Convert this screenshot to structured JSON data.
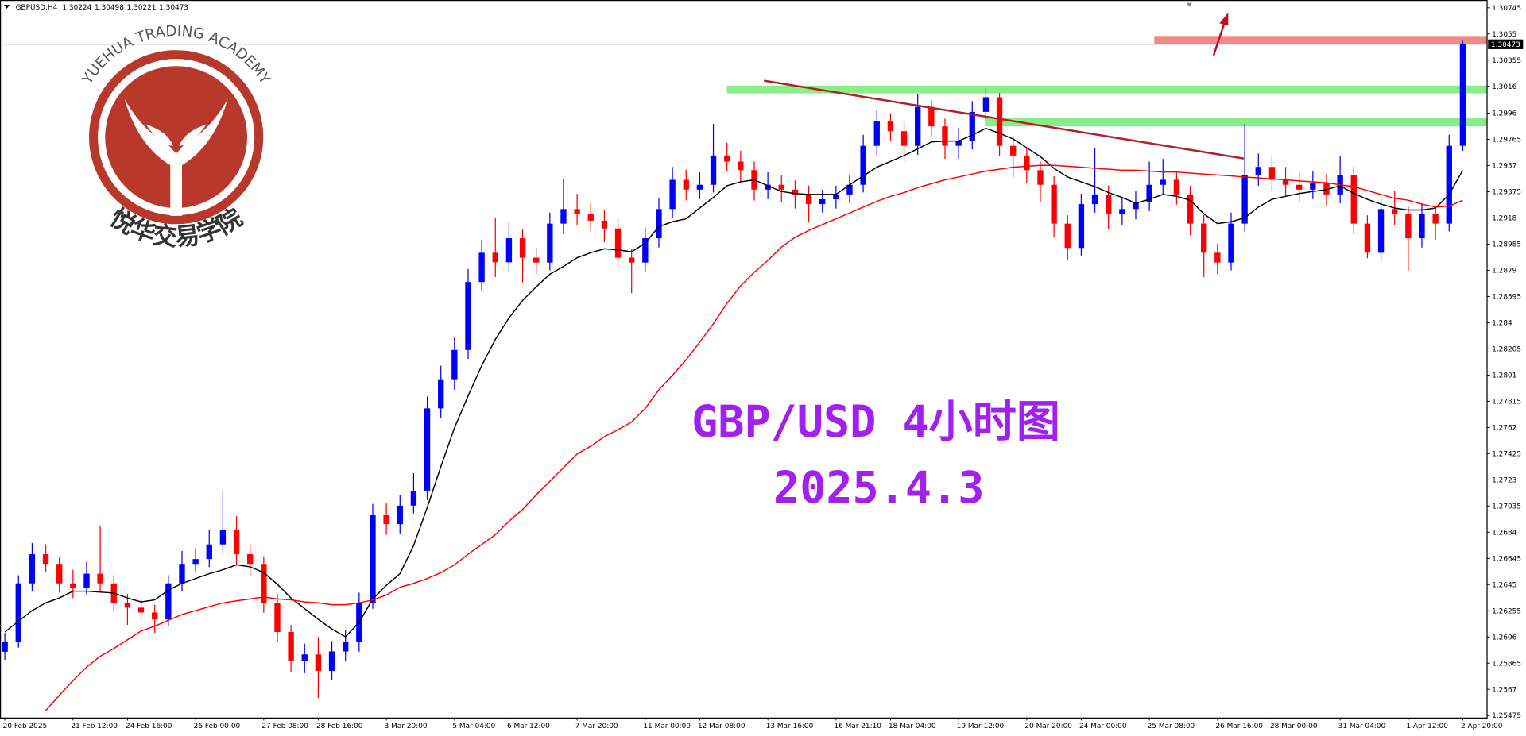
{
  "chart_data": {
    "type": "candlestick",
    "symbol": "GBPUSD,H4",
    "quote": [
      1.30224,
      1.30498,
      1.30221,
      1.30473
    ],
    "title": "GBP/USD 4小时图",
    "subtitle": "2025.4.3",
    "watermark": "YUEHUA TRADING ACADEMY",
    "watermark_cn": "悦华交易学院",
    "last_price": 1.30473,
    "up_color": "#0000ff",
    "down_color": "#ff0000",
    "grid": false,
    "ylim": [
      1.2546,
      1.30803
    ],
    "yticks": [
      1.30745,
      1.3055,
      1.30355,
      1.3016,
      1.2996,
      1.29765,
      1.2957,
      1.29375,
      1.2918,
      1.28985,
      1.2879,
      1.28595,
      1.284,
      1.28205,
      1.2801,
      1.27815,
      1.2762,
      1.27425,
      1.2723,
      1.27035,
      1.2684,
      1.26645,
      1.2645,
      1.26255,
      1.2606,
      1.25865,
      1.2567,
      1.25475
    ],
    "categories": [
      "20 Feb 2025",
      null,
      null,
      null,
      null,
      "21 Feb 12:00",
      null,
      null,
      null,
      "24 Feb 16:00",
      null,
      null,
      null,
      null,
      "26 Feb 00:00",
      null,
      null,
      null,
      null,
      "27 Feb 08:00",
      null,
      null,
      null,
      "28 Feb 16:00",
      null,
      null,
      null,
      null,
      "3 Mar 20:00",
      null,
      null,
      null,
      null,
      "5 Mar 04:00",
      null,
      null,
      null,
      "6 Mar 12:00",
      null,
      null,
      null,
      null,
      "7 Mar 20:00",
      null,
      null,
      null,
      null,
      "11 Mar 00:00",
      null,
      null,
      null,
      "12 Mar 08:00",
      null,
      null,
      null,
      null,
      "13 Mar 16:00",
      null,
      null,
      null,
      null,
      "16 Mar 21:10",
      null,
      null,
      null,
      "18 Mar 04:00",
      null,
      null,
      null,
      null,
      "19 Mar 12:00",
      null,
      null,
      null,
      null,
      "20 Mar 20:00",
      null,
      null,
      null,
      "24 Mar 00:00",
      null,
      null,
      null,
      null,
      "25 Mar 08:00",
      null,
      null,
      null,
      null,
      "26 Mar 16:00",
      null,
      null,
      null,
      "28 Mar 00:00",
      null,
      null,
      null,
      null,
      "31 Mar 04:00",
      null,
      null,
      null,
      null,
      "1 Apr 12:00",
      null,
      null,
      null,
      "2 Apr 20:00"
    ],
    "open": [
      1.2595,
      1.26025,
      1.26459,
      1.26676,
      1.26604,
      1.26459,
      1.26423,
      1.26531,
      1.26459,
      1.26314,
      1.26278,
      1.26242,
      1.2619,
      1.26459,
      1.26604,
      1.2664,
      1.26749,
      1.26857,
      1.26676,
      1.26604,
      1.26314,
      1.26097,
      1.2588,
      1.2593,
      1.25807,
      1.25952,
      1.26025,
      1.26314,
      1.26966,
      1.269,
      1.27038,
      1.27147,
      1.27762,
      1.27979,
      1.28197,
      1.28703,
      1.28921,
      1.2885,
      1.29029,
      1.28884,
      1.28848,
      1.29138,
      1.29246,
      1.2921,
      1.2916,
      1.29102,
      1.28884,
      1.28848,
      1.29029,
      1.29246,
      1.29464,
      1.29391,
      1.29427,
      1.29645,
      1.296,
      1.29536,
      1.29391,
      1.29427,
      1.29391,
      1.29355,
      1.29283,
      1.29319,
      1.29355,
      1.29427,
      1.29717,
      1.29898,
      1.29826,
      1.29717,
      1.30007,
      1.29862,
      1.29717,
      1.29753,
      1.2997,
      1.30079,
      1.29717,
      1.29645,
      1.29536,
      1.29427,
      1.29138,
      1.28957,
      1.29283,
      1.29355,
      1.2921,
      1.29246,
      1.293,
      1.29427,
      1.29464,
      1.29355,
      1.29138,
      1.28921,
      1.28848,
      1.29138,
      1.295,
      1.2956,
      1.29464,
      1.29427,
      1.29391,
      1.2944,
      1.29355,
      1.295,
      1.29138,
      1.28921,
      1.29246,
      1.2921,
      1.29029,
      1.2921,
      1.29138,
      1.29717
    ],
    "high": [
      1.2609,
      1.2652,
      1.2676,
      1.2675,
      1.2666,
      1.2656,
      1.2662,
      1.2689,
      1.2652,
      1.2638,
      1.2634,
      1.263,
      1.2652,
      1.267,
      1.2672,
      1.2686,
      1.2715,
      1.2696,
      1.2675,
      1.2666,
      1.2638,
      1.2615,
      1.2601,
      1.2606,
      1.2603,
      1.2611,
      1.2639,
      1.2705,
      1.2706,
      1.2712,
      1.2728,
      1.2785,
      1.2808,
      1.2829,
      1.288,
      1.2902,
      1.2918,
      1.2915,
      1.291,
      1.2896,
      1.2922,
      1.2947,
      1.2936,
      1.293,
      1.2924,
      1.2918,
      1.2895,
      1.2911,
      1.2933,
      1.2956,
      1.2954,
      1.2952,
      1.2988,
      1.2974,
      1.2968,
      1.296,
      1.2952,
      1.295,
      1.2946,
      1.2942,
      1.2939,
      1.2942,
      1.295,
      1.298,
      1.2998,
      1.2996,
      1.299,
      1.301,
      1.3006,
      1.2992,
      1.2985,
      1.3005,
      1.3014,
      1.3011,
      1.2979,
      1.297,
      1.296,
      1.2949,
      1.292,
      1.2936,
      1.297,
      1.2942,
      1.2933,
      1.2938,
      1.296,
      1.2962,
      1.2953,
      1.2942,
      1.292,
      1.2899,
      1.2922,
      1.2988,
      1.2966,
      1.2964,
      1.2956,
      1.2952,
      1.2953,
      1.2951,
      1.2964,
      1.2956,
      1.292,
      1.2933,
      1.2938,
      1.2927,
      1.2929,
      1.2927,
      1.298,
      1.30498
    ],
    "low": [
      1.2589,
      1.2598,
      1.264,
      1.2654,
      1.2639,
      1.2635,
      1.2637,
      1.264,
      1.2625,
      1.2615,
      1.2618,
      1.2609,
      1.2614,
      1.264,
      1.2654,
      1.2658,
      1.2669,
      1.266,
      1.2652,
      1.2624,
      1.2602,
      1.258,
      1.2579,
      1.25605,
      1.2574,
      1.2588,
      1.2595,
      1.2627,
      1.2682,
      1.2683,
      1.2698,
      1.2708,
      1.2769,
      1.279,
      1.2813,
      1.2864,
      1.2874,
      1.2878,
      1.287,
      1.2876,
      1.2879,
      1.2906,
      1.2913,
      1.2908,
      1.29,
      1.288,
      1.2862,
      1.2878,
      1.2896,
      1.2918,
      1.2931,
      1.2932,
      1.2937,
      1.2953,
      1.2945,
      1.2931,
      1.2932,
      1.293,
      1.2925,
      1.2915,
      1.2922,
      1.2925,
      1.2929,
      1.2937,
      1.2965,
      1.2975,
      1.296,
      1.2965,
      1.2978,
      1.2962,
      1.2962,
      1.2969,
      1.299,
      1.2964,
      1.2948,
      1.2944,
      1.293,
      1.2904,
      1.2887,
      1.289,
      1.2922,
      1.291,
      1.2913,
      1.2917,
      1.2923,
      1.2936,
      1.2928,
      1.2905,
      1.2874,
      1.2876,
      1.2879,
      1.2908,
      1.2942,
      1.2938,
      1.2934,
      1.293,
      1.2932,
      1.2927,
      1.2929,
      1.2906,
      1.2888,
      1.2886,
      1.2913,
      1.2879,
      1.2896,
      1.2902,
      1.2908,
      1.2968
    ],
    "close": [
      1.26025,
      1.26459,
      1.26676,
      1.26604,
      1.26459,
      1.26423,
      1.26531,
      1.26459,
      1.26314,
      1.26278,
      1.26242,
      1.2619,
      1.26459,
      1.26604,
      1.2664,
      1.26749,
      1.26857,
      1.26676,
      1.26604,
      1.26314,
      1.26097,
      1.2588,
      1.2593,
      1.25807,
      1.25952,
      1.26025,
      1.26314,
      1.26966,
      1.269,
      1.27038,
      1.27147,
      1.27762,
      1.27979,
      1.28197,
      1.28703,
      1.28921,
      1.2885,
      1.29029,
      1.28884,
      1.28848,
      1.29138,
      1.29246,
      1.2921,
      1.2916,
      1.29102,
      1.28884,
      1.28848,
      1.29029,
      1.29246,
      1.29464,
      1.29391,
      1.29427,
      1.29645,
      1.296,
      1.29536,
      1.29391,
      1.29427,
      1.29391,
      1.29355,
      1.29283,
      1.29319,
      1.29355,
      1.29427,
      1.29717,
      1.29898,
      1.29826,
      1.29717,
      1.30007,
      1.29862,
      1.29717,
      1.29753,
      1.2997,
      1.30079,
      1.29717,
      1.29645,
      1.29536,
      1.29427,
      1.29138,
      1.28957,
      1.29283,
      1.29355,
      1.2921,
      1.29246,
      1.293,
      1.29427,
      1.29464,
      1.29355,
      1.29138,
      1.28921,
      1.28848,
      1.29138,
      1.295,
      1.2956,
      1.29464,
      1.29427,
      1.29391,
      1.2944,
      1.29355,
      1.295,
      1.29138,
      1.28921,
      1.29246,
      1.2921,
      1.29029,
      1.2921,
      1.29138,
      1.29717,
      1.30473
    ],
    "overlays": [
      {
        "color": "#000000",
        "values": [
          1.26097,
          1.26177,
          1.26256,
          1.26314,
          1.2635,
          1.26401,
          1.26401,
          1.26394,
          1.26387,
          1.2635,
          1.26321,
          1.26336,
          1.26408,
          1.26459,
          1.26495,
          1.26531,
          1.2656,
          1.26597,
          1.26582,
          1.26539,
          1.26452,
          1.2635,
          1.26271,
          1.26191,
          1.26119,
          1.26061,
          1.26169,
          1.26343,
          1.26445,
          1.26531,
          1.26741,
          1.27024,
          1.27328,
          1.27617,
          1.27856,
          1.28081,
          1.28276,
          1.28436,
          1.28566,
          1.28667,
          1.28761,
          1.28819,
          1.28884,
          1.28921,
          1.2895,
          1.28942,
          1.28928,
          1.28993,
          1.29116,
          1.29152,
          1.29174,
          1.29254,
          1.29333,
          1.2942,
          1.29449,
          1.29464,
          1.2942,
          1.29377,
          1.29362,
          1.29355,
          1.29355,
          1.29355,
          1.29427,
          1.29493,
          1.29558,
          1.29601,
          1.29645,
          1.29695,
          1.29746,
          1.29753,
          1.29753,
          1.29797,
          1.29847,
          1.29811,
          1.29768,
          1.29703,
          1.29637,
          1.2955,
          1.29485,
          1.29449,
          1.29413,
          1.29369,
          1.29333,
          1.2929,
          1.29319,
          1.29355,
          1.29341,
          1.29312,
          1.2921,
          1.29138,
          1.29152,
          1.29181,
          1.29261,
          1.29319,
          1.29341,
          1.29362,
          1.29377,
          1.29391,
          1.2942,
          1.29362,
          1.29319,
          1.29283,
          1.29254,
          1.29239,
          1.29239,
          1.29254,
          1.29355,
          1.29536
        ]
      },
      {
        "color": "#ff0000",
        "values": [
          null,
          null,
          null,
          1.25511,
          1.25626,
          1.25735,
          1.25836,
          1.25916,
          1.25974,
          1.26039,
          1.26104,
          1.2614,
          1.26184,
          1.26227,
          1.26256,
          1.26285,
          1.26314,
          1.26329,
          1.26343,
          1.26358,
          1.26343,
          1.26336,
          1.26321,
          1.26314,
          1.263,
          1.263,
          1.26314,
          1.26336,
          1.26372,
          1.2643,
          1.26459,
          1.26495,
          1.26539,
          1.26597,
          1.26676,
          1.26749,
          1.26821,
          1.26922,
          1.27009,
          1.27118,
          1.27219,
          1.27321,
          1.27422,
          1.2748,
          1.27552,
          1.27603,
          1.27661,
          1.27762,
          1.279,
          1.28008,
          1.28124,
          1.28255,
          1.28392,
          1.28544,
          1.28674,
          1.28776,
          1.28863,
          1.28964,
          1.29036,
          1.29087,
          1.29131,
          1.29174,
          1.29217,
          1.29261,
          1.29304,
          1.29341,
          1.29369,
          1.29406,
          1.29435,
          1.29464,
          1.29485,
          1.29507,
          1.29529,
          1.29543,
          1.29558,
          1.29565,
          1.29572,
          1.29572,
          1.29565,
          1.29558,
          1.2955,
          1.29543,
          1.29536,
          1.29536,
          1.29529,
          1.29522,
          1.29522,
          1.29514,
          1.29507,
          1.295,
          1.29493,
          1.29485,
          1.29478,
          1.29471,
          1.29464,
          1.29456,
          1.29449,
          1.29442,
          1.29427,
          1.29413,
          1.29384,
          1.29355,
          1.29326,
          1.29312,
          1.29283,
          1.29261,
          1.29268,
          1.29312
        ]
      }
    ]
  }
}
